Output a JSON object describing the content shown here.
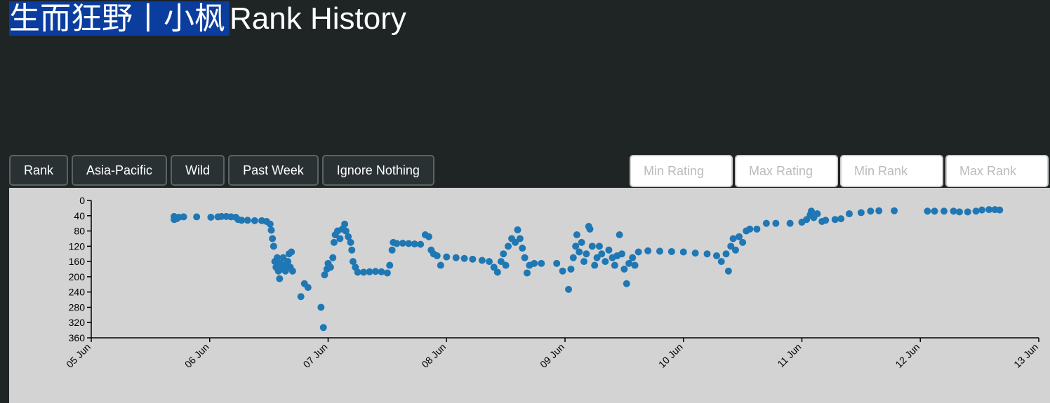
{
  "header": {
    "player": "生而狂野丨小枫",
    "title": "Rank History"
  },
  "buttons": [
    "Rank",
    "Asia-Pacific",
    "Wild",
    "Past Week",
    "Ignore Nothing"
  ],
  "inputs": [
    "Min Rating",
    "Max Rating",
    "Min Rank",
    "Max Rank"
  ],
  "chart_data": {
    "type": "scatter",
    "color": "#1f77b4",
    "y_reversed": true,
    "xlim": [
      5,
      13
    ],
    "xticks": [
      {
        "value": 5,
        "label": "05 Jun"
      },
      {
        "value": 6,
        "label": "06 Jun"
      },
      {
        "value": 7,
        "label": "07 Jun"
      },
      {
        "value": 8,
        "label": "08 Jun"
      },
      {
        "value": 9,
        "label": "09 Jun"
      },
      {
        "value": 10,
        "label": "10 Jun"
      },
      {
        "value": 11,
        "label": "11 Jun"
      },
      {
        "value": 12,
        "label": "12 Jun"
      },
      {
        "value": 13,
        "label": "13 Jun"
      }
    ],
    "ylim": [
      0,
      360
    ],
    "yticks": [
      0,
      40,
      80,
      120,
      160,
      200,
      240,
      280,
      320,
      360
    ],
    "x": [
      5.7,
      5.7,
      5.71,
      5.72,
      5.74,
      5.78,
      5.89,
      6.01,
      6.07,
      6.1,
      6.14,
      6.18,
      6.22,
      6.24,
      6.27,
      6.32,
      6.38,
      6.44,
      6.48,
      6.51,
      6.52,
      6.53,
      6.54,
      6.55,
      6.56,
      6.57,
      6.58,
      6.59,
      6.6,
      6.61,
      6.62,
      6.63,
      6.64,
      6.66,
      6.67,
      6.68,
      6.69,
      6.7,
      6.77,
      6.8,
      6.83,
      6.94,
      6.96,
      6.97,
      6.99,
      7.0,
      7.02,
      7.04,
      7.05,
      7.06,
      7.08,
      7.1,
      7.12,
      7.14,
      7.15,
      7.17,
      7.19,
      7.2,
      7.21,
      7.23,
      7.25,
      7.3,
      7.35,
      7.4,
      7.45,
      7.5,
      7.52,
      7.54,
      7.55,
      7.58,
      7.63,
      7.68,
      7.73,
      7.78,
      7.82,
      7.85,
      7.87,
      7.89,
      7.92,
      7.95,
      8.0,
      8.08,
      8.15,
      8.22,
      8.3,
      8.36,
      8.4,
      8.43,
      8.46,
      8.48,
      8.5,
      8.52,
      8.55,
      8.58,
      8.6,
      8.62,
      8.64,
      8.66,
      8.68,
      8.7,
      8.74,
      8.8,
      8.93,
      8.98,
      9.03,
      9.05,
      9.07,
      9.09,
      9.1,
      9.12,
      9.14,
      9.16,
      9.18,
      9.2,
      9.21,
      9.23,
      9.25,
      9.27,
      9.29,
      9.31,
      9.34,
      9.37,
      9.4,
      9.42,
      9.44,
      9.46,
      9.48,
      9.5,
      9.52,
      9.54,
      9.57,
      9.59,
      9.62,
      9.7,
      9.8,
      9.9,
      10.0,
      10.1,
      10.2,
      10.28,
      10.32,
      10.36,
      10.38,
      10.4,
      10.42,
      10.44,
      10.47,
      10.5,
      10.53,
      10.56,
      10.62,
      10.7,
      10.78,
      10.9,
      11.0,
      11.04,
      11.07,
      11.08,
      11.1,
      11.13,
      11.17,
      11.2,
      11.28,
      11.33,
      11.4,
      11.5,
      11.58,
      11.65,
      11.78,
      12.06,
      12.12,
      12.2,
      12.28,
      12.33,
      12.4,
      12.47,
      12.52,
      12.58,
      12.63,
      12.67
    ],
    "y": [
      42,
      50,
      46,
      48,
      44,
      43,
      43,
      44,
      43,
      42,
      42,
      43,
      44,
      50,
      52,
      52,
      53,
      53,
      55,
      62,
      78,
      100,
      120,
      160,
      175,
      150,
      185,
      205,
      165,
      180,
      150,
      170,
      185,
      160,
      140,
      175,
      135,
      185,
      252,
      218,
      228,
      280,
      333,
      195,
      180,
      165,
      175,
      150,
      110,
      90,
      80,
      100,
      75,
      62,
      80,
      95,
      110,
      130,
      160,
      175,
      188,
      188,
      187,
      186,
      187,
      190,
      170,
      130,
      110,
      113,
      112,
      113,
      114,
      115,
      90,
      95,
      130,
      140,
      145,
      170,
      148,
      150,
      152,
      154,
      157,
      160,
      175,
      188,
      160,
      140,
      170,
      120,
      100,
      110,
      77,
      100,
      125,
      150,
      190,
      170,
      165,
      165,
      165,
      185,
      233,
      180,
      150,
      120,
      90,
      135,
      110,
      160,
      140,
      68,
      75,
      120,
      170,
      150,
      120,
      140,
      160,
      130,
      150,
      170,
      145,
      90,
      140,
      180,
      218,
      165,
      150,
      170,
      135,
      132,
      133,
      134,
      135,
      138,
      140,
      145,
      160,
      140,
      185,
      120,
      100,
      130,
      95,
      110,
      80,
      75,
      75,
      60,
      60,
      60,
      57,
      50,
      38,
      28,
      45,
      35,
      55,
      52,
      50,
      48,
      35,
      32,
      28,
      27,
      27,
      28,
      28,
      28,
      28,
      30,
      30,
      28,
      25,
      24,
      24,
      25
    ]
  }
}
